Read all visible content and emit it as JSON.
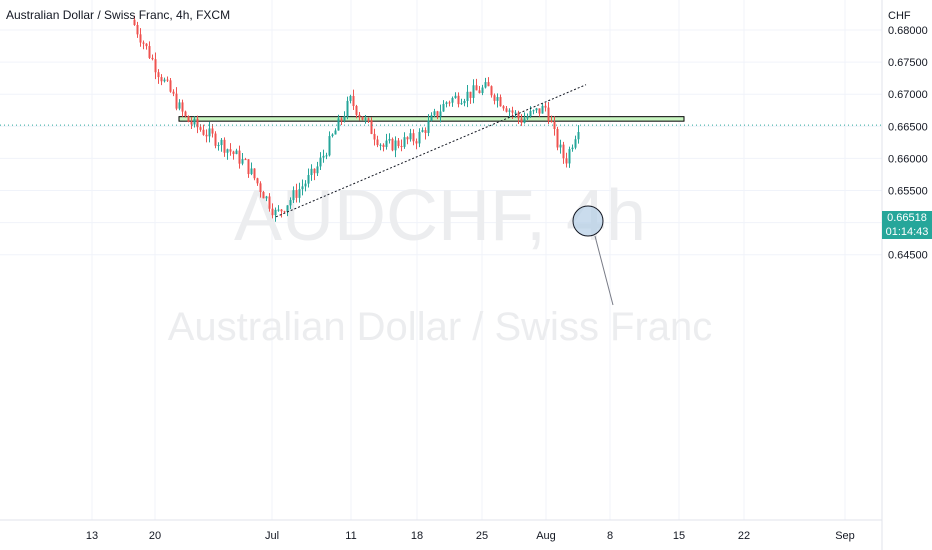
{
  "header": {
    "title": "Australian Dollar / Swiss Franc, 4h, FXCM"
  },
  "watermark": {
    "symbol": "AUDCHF, 4h",
    "name": "Australian Dollar / Swiss Franc"
  },
  "price_axis": {
    "currency": "CHF",
    "current_price": "0.66518",
    "countdown": "01:14:43"
  },
  "colors": {
    "up": "#26a69a",
    "down": "#ef5350",
    "zone_fill": "#c8f5c0",
    "zone_border": "#000000",
    "price_line": "#26a69a",
    "circle_fill": "#b3cde6"
  },
  "chart_data": {
    "type": "candlestick",
    "title": "Australian Dollar / Swiss Franc, 4h, FXCM",
    "y_axis": {
      "ticks": [
        0.68,
        0.675,
        0.67,
        0.665,
        0.66,
        0.655,
        0.65,
        0.645
      ],
      "tick_labels": [
        "0.68000",
        "0.67500",
        "0.67000",
        "0.66500",
        "0.66000",
        "0.65500",
        "0.65000",
        "0.64500"
      ],
      "range": [
        0.6405,
        0.6815
      ]
    },
    "x_axis": {
      "tick_labels": [
        "13",
        "20",
        "Jul",
        "11",
        "18",
        "25",
        "Aug",
        "8",
        "15",
        "22",
        "Sep"
      ]
    },
    "current_price": 0.66518,
    "resistance_zone": {
      "low": 0.6658,
      "high": 0.6665,
      "from": "20",
      "to": "15"
    },
    "trendline": {
      "from": {
        "date": "Jul",
        "price": 0.6509
      },
      "to": {
        "date": "Aug",
        "price": 0.6707
      }
    },
    "key_points": [
      {
        "label": "Jun 18",
        "price": 0.6808
      },
      {
        "label": "Jun 20",
        "price": 0.6735
      },
      {
        "label": "Jun 22",
        "price": 0.666
      },
      {
        "label": "Jun 25",
        "price": 0.6625
      },
      {
        "label": "Jun 30",
        "price": 0.659
      },
      {
        "label": "Jul 1",
        "price": 0.6512
      },
      {
        "label": "Jul 7",
        "price": 0.658
      },
      {
        "label": "Jul 11",
        "price": 0.669
      },
      {
        "label": "Jul 14",
        "price": 0.6618
      },
      {
        "label": "Jul 18",
        "price": 0.6632
      },
      {
        "label": "Jul 21",
        "price": 0.669
      },
      {
        "label": "Jul 25",
        "price": 0.671
      },
      {
        "label": "Jul 29",
        "price": 0.666
      },
      {
        "label": "Aug 1",
        "price": 0.668
      },
      {
        "label": "Aug 2",
        "price": 0.663
      },
      {
        "label": "Aug 3",
        "price": 0.6595
      },
      {
        "label": "Aug 4",
        "price": 0.6652
      }
    ],
    "grid": true
  }
}
